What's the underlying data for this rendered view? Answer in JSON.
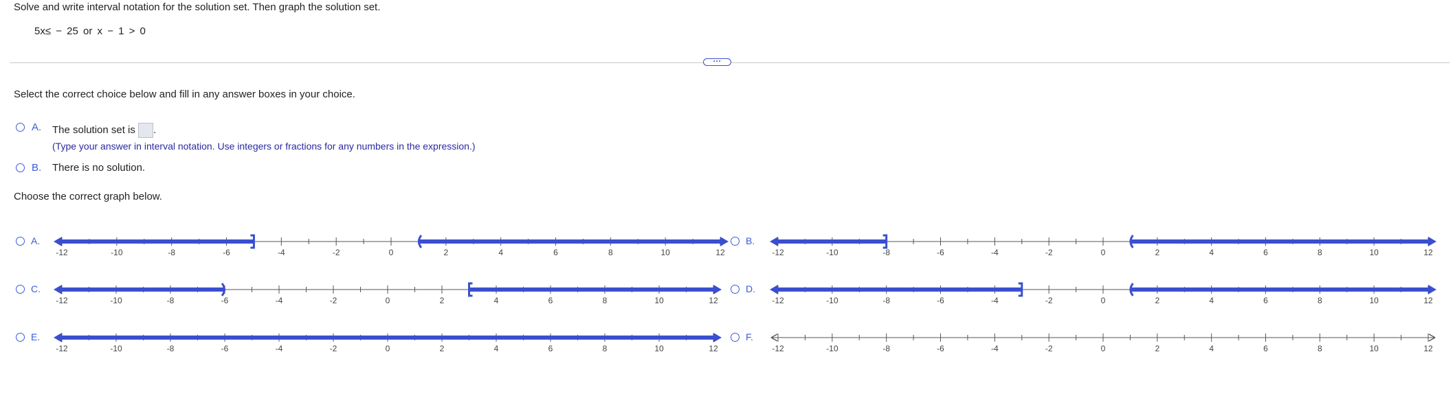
{
  "problem": {
    "instruction": "Solve and write interval notation for the solution set. Then graph the solution set.",
    "inequality": "5x≤ − 25 or x − 1 > 0"
  },
  "select_prompt": "Select the correct choice below and fill in any answer boxes in your choice.",
  "choices": [
    {
      "letter": "A.",
      "text_before": "The solution set is",
      "text_after": ".",
      "answer_value": "",
      "hint": "(Type your answer in interval notation. Use integers or fractions for any numbers in the expression.)"
    },
    {
      "letter": "B.",
      "text": "There is no solution."
    }
  ],
  "graph_prompt": "Choose the correct graph below.",
  "graph_ticks": [
    "-12",
    "-10",
    "-8",
    "-6",
    "-4",
    "-2",
    "0",
    "2",
    "4",
    "6",
    "8",
    "10",
    "12"
  ],
  "graph_options": [
    {
      "letter": "A.",
      "segments": [
        {
          "from": -12,
          "to": -5,
          "left": "arrow",
          "right": "bracket-close"
        },
        {
          "from": 1,
          "to": 12,
          "left": "paren-open",
          "right": "arrow"
        }
      ]
    },
    {
      "letter": "B.",
      "segments": [
        {
          "from": -12,
          "to": -8,
          "left": "arrow",
          "right": "bracket-close"
        },
        {
          "from": 1,
          "to": 12,
          "left": "paren-open",
          "right": "arrow"
        }
      ]
    },
    {
      "letter": "C.",
      "segments": [
        {
          "from": -12,
          "to": -6,
          "left": "arrow",
          "right": "paren-close"
        },
        {
          "from": 3,
          "to": 12,
          "left": "bracket-open",
          "right": "arrow"
        }
      ]
    },
    {
      "letter": "D.",
      "segments": [
        {
          "from": -12,
          "to": -3,
          "left": "arrow",
          "right": "bracket-close"
        },
        {
          "from": 1,
          "to": 12,
          "left": "paren-open",
          "right": "arrow"
        }
      ]
    },
    {
      "letter": "E.",
      "segments": [
        {
          "from": -12,
          "to": 12,
          "left": "arrow",
          "right": "arrow"
        }
      ]
    },
    {
      "letter": "F.",
      "segments": []
    }
  ],
  "colors": {
    "accent": "#3a5bd9",
    "shade": "#3a4fd0",
    "axis": "#555555"
  }
}
